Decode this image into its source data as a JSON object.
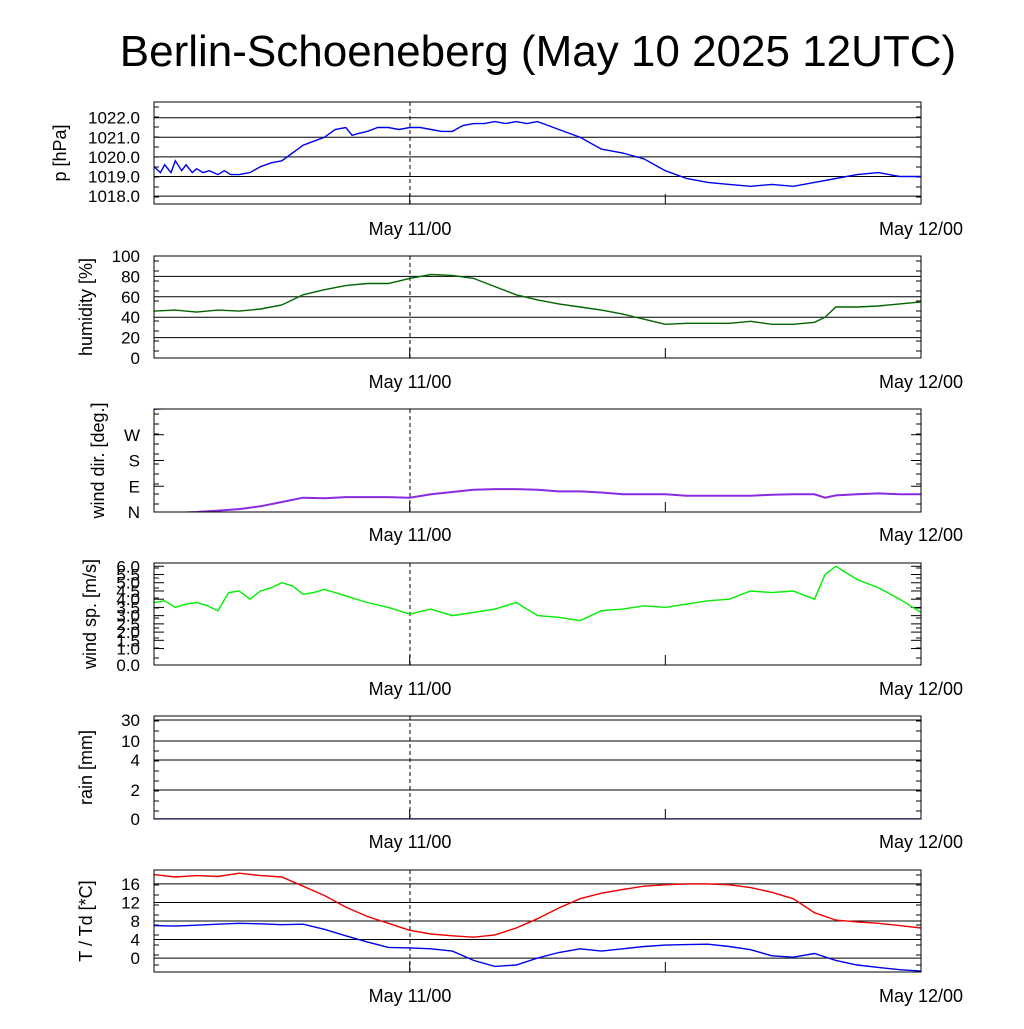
{
  "title": "Berlin-Schoeneberg (May 10 2025 12UTC)",
  "chart_data": [
    {
      "type": "line",
      "ylabel": "p [hPa]",
      "ylim": [
        1017.6,
        1022.8
      ],
      "yticks": [
        1018.0,
        1019.0,
        1020.0,
        1021.0,
        1022.0
      ],
      "ytick_labels": [
        "1018.0",
        "1019.0",
        "1020.0",
        "1021.0",
        "1022.0"
      ],
      "x_unit": "hours since May 10 12UTC",
      "xlim": [
        0,
        36
      ],
      "xtick_labels": [
        "May 11/00",
        "May 12/00"
      ],
      "grid": true,
      "series": [
        {
          "color": "#0000ee",
          "x": [
            0,
            0.3,
            0.5,
            0.8,
            1,
            1.3,
            1.5,
            1.8,
            2,
            2.3,
            2.6,
            3,
            3.3,
            3.6,
            4,
            4.5,
            5,
            5.5,
            6,
            6.5,
            7,
            7.5,
            8,
            8.5,
            9,
            9.3,
            9.6,
            10,
            10.5,
            11,
            11.5,
            12,
            12.5,
            13,
            13.5,
            14,
            14.5,
            15,
            15.5,
            16,
            16.5,
            17,
            17.5,
            18,
            18.5,
            19,
            19.5,
            20,
            20.5,
            21,
            22,
            23,
            24,
            25,
            26,
            27,
            28,
            29,
            30,
            31,
            32,
            33,
            34,
            35,
            36
          ],
          "y": [
            1019.5,
            1019.2,
            1019.6,
            1019.2,
            1019.8,
            1019.3,
            1019.6,
            1019.2,
            1019.4,
            1019.2,
            1019.3,
            1019.1,
            1019.3,
            1019.1,
            1019.1,
            1019.2,
            1019.5,
            1019.7,
            1019.8,
            1020.2,
            1020.6,
            1020.8,
            1021.0,
            1021.4,
            1021.5,
            1021.1,
            1021.2,
            1021.3,
            1021.5,
            1021.5,
            1021.4,
            1021.5,
            1021.5,
            1021.4,
            1021.3,
            1021.3,
            1021.6,
            1021.7,
            1021.7,
            1021.8,
            1021.7,
            1021.8,
            1021.7,
            1021.8,
            1021.6,
            1021.4,
            1021.2,
            1021.0,
            1020.7,
            1020.4,
            1020.2,
            1019.9,
            1019.3,
            1018.9,
            1018.7,
            1018.6,
            1018.5,
            1018.6,
            1018.5,
            1018.7,
            1018.9,
            1019.1,
            1019.2,
            1019.0,
            1019.0
          ]
        }
      ]
    },
    {
      "type": "line",
      "ylabel": "humidity [%]",
      "ylim": [
        0,
        100
      ],
      "yticks": [
        0,
        20,
        40,
        60,
        80,
        100
      ],
      "ytick_labels": [
        "0",
        "20",
        "40",
        "60",
        "80",
        "100"
      ],
      "xlim": [
        0,
        36
      ],
      "xtick_labels": [
        "May 11/00",
        "May 12/00"
      ],
      "grid": true,
      "series": [
        {
          "color": "#006400",
          "x": [
            0,
            1,
            2,
            3,
            4,
            5,
            6,
            7,
            8,
            9,
            10,
            11,
            12,
            13,
            14,
            15,
            16,
            17,
            18,
            19,
            20,
            21,
            22,
            23,
            24,
            25,
            26,
            27,
            28,
            29,
            30,
            31,
            31.5,
            32,
            33,
            34,
            35,
            36
          ],
          "y": [
            46,
            47,
            45,
            47,
            46,
            48,
            52,
            62,
            67,
            71,
            73,
            73,
            78,
            82,
            81,
            78,
            70,
            62,
            57,
            53,
            50,
            47,
            43,
            38,
            33,
            34,
            34,
            34,
            36,
            33,
            33,
            35,
            40,
            50,
            50,
            51,
            53,
            55
          ]
        }
      ]
    },
    {
      "type": "line",
      "ylabel": "wind dir. [deg.]",
      "ylim": [
        0,
        360
      ],
      "yticks": [
        0,
        90,
        180,
        270
      ],
      "ytick_labels": [
        "N",
        "E",
        "S",
        "W"
      ],
      "xlim": [
        0,
        36
      ],
      "xtick_labels": [
        "May 11/00",
        "May 12/00"
      ],
      "grid": false,
      "series": [
        {
          "color": "#8a2be2",
          "x": [
            0,
            1,
            2,
            3,
            4,
            5,
            6,
            7,
            8,
            9,
            10,
            11,
            12,
            13,
            14,
            15,
            16,
            17,
            18,
            19,
            20,
            21,
            22,
            23,
            24,
            25,
            26,
            27,
            28,
            29,
            30,
            31,
            31.5,
            32,
            33,
            34,
            35,
            36
          ],
          "y": [
            -5,
            -3,
            0,
            5,
            10,
            20,
            35,
            50,
            48,
            52,
            52,
            52,
            50,
            62,
            70,
            78,
            80,
            80,
            78,
            72,
            72,
            68,
            62,
            62,
            62,
            57,
            57,
            57,
            57,
            60,
            62,
            62,
            50,
            58,
            62,
            65,
            62,
            62
          ]
        },
        {
          "color": "#8a2be2",
          "x": [
            0,
            0.5,
            1
          ],
          "y": [
            360,
            362,
            368
          ]
        }
      ]
    },
    {
      "type": "line",
      "ylabel": "wind sp. [m/s]",
      "ylim": [
        0,
        6.2
      ],
      "yticks": [
        0.0,
        1.0,
        1.5,
        2.0,
        2.5,
        3.0,
        3.5,
        4.0,
        4.5,
        5.0,
        5.5,
        6.0
      ],
      "ytick_labels": [
        "0.0",
        "1.0",
        "1.5",
        "2.0",
        "2.5",
        "3.0",
        "3.5",
        "4.0",
        "4.5",
        "5.0",
        "5.5",
        "6.0"
      ],
      "xlim": [
        0,
        36
      ],
      "xtick_labels": [
        "May 11/00",
        "May 12/00"
      ],
      "grid": false,
      "series": [
        {
          "color": "#00ee00",
          "x": [
            0,
            0.5,
            1,
            1.5,
            2,
            2.5,
            3,
            3.5,
            4,
            4.5,
            5,
            5.5,
            6,
            6.5,
            7,
            7.5,
            8,
            9,
            10,
            11,
            12,
            13,
            14,
            15,
            16,
            17,
            18,
            19,
            20,
            21,
            22,
            23,
            24,
            25,
            26,
            27,
            28,
            29,
            30,
            31,
            31.5,
            32,
            32.5,
            33,
            34,
            35,
            36
          ],
          "y": [
            3.8,
            3.9,
            3.5,
            3.7,
            3.8,
            3.6,
            3.3,
            4.4,
            4.5,
            4.0,
            4.5,
            4.7,
            5.0,
            4.8,
            4.3,
            4.4,
            4.6,
            4.2,
            3.8,
            3.5,
            3.1,
            3.4,
            3.0,
            3.2,
            3.4,
            3.8,
            3.0,
            2.9,
            2.7,
            3.3,
            3.4,
            3.6,
            3.5,
            3.7,
            3.9,
            4.0,
            4.5,
            4.4,
            4.5,
            4.0,
            5.5,
            6.0,
            5.6,
            5.2,
            4.7,
            4.0,
            3.2
          ]
        }
      ]
    },
    {
      "type": "line",
      "ylabel": "rain [mm]",
      "yticks": [
        0,
        2,
        4,
        10,
        30
      ],
      "ytick_labels": [
        "0",
        "2",
        "4",
        "10",
        "30"
      ],
      "xlim": [
        0,
        36
      ],
      "xtick_labels": [
        "May 11/00",
        "May 12/00"
      ],
      "grid": true,
      "series": [
        {
          "color": "#0000ee",
          "x": [
            0,
            36
          ],
          "y": [
            0,
            0
          ]
        }
      ]
    },
    {
      "type": "line",
      "ylabel": "T / Td [*C]",
      "ylim": [
        -3,
        19
      ],
      "yticks": [
        0,
        4,
        8,
        12,
        16
      ],
      "ytick_labels": [
        "0",
        "4",
        "8",
        "12",
        "16"
      ],
      "xlim": [
        0,
        36
      ],
      "xtick_labels": [
        "May 11/00",
        "May 12/00"
      ],
      "grid": true,
      "series": [
        {
          "color": "#ee0000",
          "x": [
            0,
            1,
            2,
            3,
            4,
            5,
            6,
            7,
            8,
            9,
            10,
            11,
            12,
            13,
            14,
            15,
            16,
            17,
            18,
            19,
            20,
            21,
            22,
            23,
            24,
            25,
            26,
            27,
            28,
            29,
            30,
            31,
            32,
            33,
            34,
            35,
            36
          ],
          "y": [
            18.0,
            17.5,
            17.8,
            17.6,
            18.3,
            17.8,
            17.5,
            15.5,
            13.5,
            11.0,
            9.0,
            7.5,
            6.0,
            5.2,
            4.8,
            4.5,
            5.0,
            6.5,
            8.5,
            10.8,
            12.8,
            14.0,
            14.8,
            15.5,
            15.8,
            16.0,
            16.0,
            15.8,
            15.2,
            14.2,
            12.8,
            9.8,
            8.2,
            7.8,
            7.5,
            7.0,
            6.5
          ]
        },
        {
          "color": "#0000ee",
          "x": [
            0,
            1,
            2,
            3,
            4,
            5,
            6,
            7,
            8,
            9,
            10,
            11,
            12,
            13,
            14,
            15,
            16,
            17,
            18,
            19,
            20,
            21,
            22,
            23,
            24,
            25,
            26,
            27,
            28,
            29,
            30,
            31,
            32,
            33,
            34,
            35,
            36
          ],
          "y": [
            7.0,
            6.9,
            7.1,
            7.3,
            7.5,
            7.4,
            7.2,
            7.3,
            6.2,
            4.8,
            3.5,
            2.3,
            2.2,
            2.0,
            1.5,
            -0.5,
            -1.8,
            -1.5,
            0.0,
            1.2,
            2.0,
            1.5,
            2.0,
            2.5,
            2.8,
            2.9,
            3.0,
            2.5,
            1.8,
            0.5,
            0.2,
            1.0,
            -0.5,
            -1.5,
            -2.0,
            -2.5,
            -2.8
          ]
        }
      ]
    }
  ]
}
